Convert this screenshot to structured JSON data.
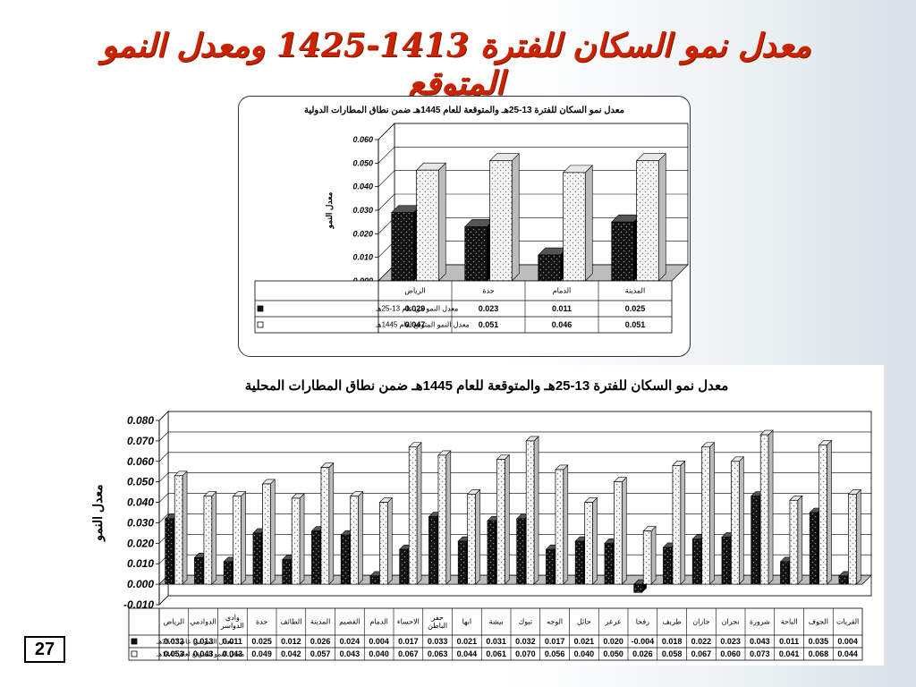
{
  "slide": {
    "title": "معدل نمو السكان للفترة 1413-1425   ومعدل النمو المتوقع",
    "page_number": "27"
  },
  "colors": {
    "title": "#cc2200",
    "series_actual": "#111111",
    "series_expected": "#f4f4f4"
  },
  "chart_data": [
    {
      "type": "bar",
      "title": "معدل نمو السكان للفترة 13-25هـ  والمتوقعة للعام 1445هـ ضمن نطاق المطارات الدولية",
      "ylabel": "معدل النمو",
      "ylim": [
        0,
        0.06
      ],
      "yticks": [
        "0.000",
        "0.010",
        "0.020",
        "0.030",
        "0.040",
        "0.050",
        "0.060"
      ],
      "categories": [
        "المدينة",
        "الدمام",
        "جدة",
        "الرياض"
      ],
      "series": [
        {
          "name": "معدل النمو من عام 13-25هـ",
          "values": [
            0.025,
            0.011,
            0.023,
            0.029
          ],
          "labels": [
            "0.025",
            "0.011",
            "0.023",
            "0.029"
          ]
        },
        {
          "name": "معدل النمو المتوقع لعام 1445هـ",
          "values": [
            0.051,
            0.046,
            0.051,
            0.047
          ],
          "labels": [
            "0.051",
            "0.046",
            "0.051",
            "0.047"
          ]
        }
      ],
      "grid": true,
      "legend": "data-table"
    },
    {
      "type": "bar",
      "title": "معدل نمو السكان للفترة 13-25هـ  والمتوقعة للعام 1445هـ ضمن نطاق المطارات المحلية",
      "ylabel": "معدل النمو",
      "ylim": [
        -0.01,
        0.08
      ],
      "yticks": [
        "-0.010",
        "0.000",
        "0.010",
        "0.020",
        "0.030",
        "0.040",
        "0.050",
        "0.060",
        "0.070",
        "0.080"
      ],
      "categories": [
        "القريات",
        "الجوف",
        "الباحة",
        "شرورة",
        "نجران",
        "جازان",
        "طريف",
        "رفحا",
        "عرعر",
        "حائل",
        "الوجه",
        "تبوك",
        "بيشة",
        "ابها",
        "حفر الباطن",
        "الاحساء",
        "الدمام",
        "القصيم",
        "المدينة",
        "الطائف",
        "جدة",
        "وادي الدواسر",
        "الدوادمي",
        "الرياض"
      ],
      "series": [
        {
          "name": "معدل النمو من عام 13-25هـ",
          "values": [
            0.004,
            0.035,
            0.011,
            0.043,
            0.023,
            0.022,
            0.018,
            -0.004,
            0.02,
            0.021,
            0.017,
            0.032,
            0.031,
            0.021,
            0.033,
            0.017,
            0.004,
            0.024,
            0.026,
            0.012,
            0.025,
            0.011,
            0.013,
            0.032
          ],
          "labels": [
            "0.004",
            "0.035",
            "0.011",
            "0.043",
            "0.023",
            "0.022",
            "0.018",
            "-0.004",
            "0.020",
            "0.021",
            "0.017",
            "0.032",
            "0.031",
            "0.021",
            "0.033",
            "0.017",
            "0.004",
            "0.024",
            "0.026",
            "0.012",
            "0.025",
            "0.011",
            "0.013",
            "0.032"
          ]
        },
        {
          "name": "معدل النمو المتوقع لعام 1445هـ",
          "values": [
            0.044,
            0.068,
            0.041,
            0.073,
            0.06,
            0.067,
            0.058,
            0.026,
            0.05,
            0.04,
            0.056,
            0.07,
            0.061,
            0.044,
            0.063,
            0.067,
            0.04,
            0.043,
            0.057,
            0.042,
            0.049,
            0.043,
            0.043,
            0.053
          ],
          "labels": [
            "0.044",
            "0.068",
            "0.041",
            "0.073",
            "0.060",
            "0.067",
            "0.058",
            "0.026",
            "0.050",
            "0.040",
            "0.056",
            "0.070",
            "0.061",
            "0.044",
            "0.063",
            "0.067",
            "0.040",
            "0.043",
            "0.057",
            "0.042",
            "0.049",
            "0.043",
            "0.043",
            "0.053"
          ]
        }
      ],
      "grid": true,
      "legend": "data-table"
    }
  ]
}
